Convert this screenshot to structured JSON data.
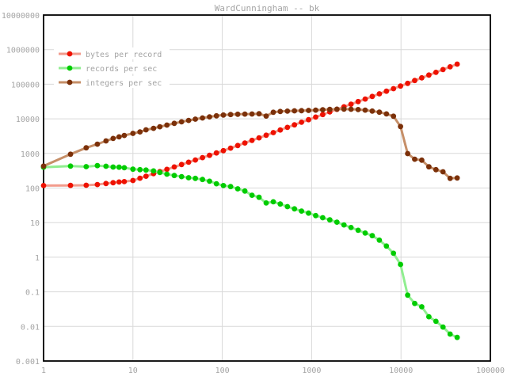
{
  "title": "WardCunningham -- bk",
  "colors": {
    "background": "#ffffff",
    "grid": "#d9d9d9",
    "border": "#000000",
    "label_text": "#a4a4a4"
  },
  "chart_data": {
    "type": "line",
    "title": "WardCunningham -- bk",
    "x_scale": "log",
    "y_scale": "log",
    "grid": true,
    "legend_position": "top-left",
    "x_range": [
      1,
      100000
    ],
    "y_range": [
      0.001,
      10000000
    ],
    "x_tick_labels": [
      "1",
      "10",
      "100",
      "1000",
      "10000",
      "100000"
    ],
    "y_tick_labels": [
      "10000000",
      "1000000",
      "100000",
      "10000",
      "1000",
      "100",
      "10",
      "1",
      "0.1",
      "0.01",
      "0.001"
    ],
    "x": [
      1,
      2,
      3,
      4,
      5,
      6,
      7,
      8,
      10,
      12,
      14,
      17,
      20,
      24,
      29,
      35,
      42,
      50,
      60,
      72,
      86,
      103,
      124,
      149,
      179,
      215,
      258,
      310,
      372,
      446,
      535,
      642,
      770,
      924,
      1109,
      1331,
      1597,
      1916,
      2299,
      2759,
      3311,
      3973,
      4768,
      5722,
      6866,
      8239,
      9887,
      11864,
      14237,
      17084,
      20501,
      24601,
      29521,
      35425,
      42510
    ],
    "series": [
      {
        "name": "bytes per record",
        "point_color": "#ee1100",
        "line_color": "#f29b8c",
        "values": [
          118,
          119,
          120,
          126,
          135,
          142,
          149,
          153,
          165,
          192,
          219,
          259,
          297,
          347,
          407,
          478,
          558,
          647,
          755,
          881,
          1030,
          1200,
          1420,
          1690,
          2010,
          2380,
          2830,
          3360,
          4000,
          4750,
          5650,
          6700,
          7960,
          9460,
          11200,
          13300,
          15800,
          18800,
          22300,
          26500,
          31500,
          37400,
          44500,
          52800,
          62800,
          74600,
          88600,
          106000,
          128000,
          153000,
          184000,
          221000,
          265000,
          318000,
          381000
        ]
      },
      {
        "name": "records per sec",
        "point_color": "#00cc00",
        "line_color": "#90ee90",
        "values": [
          400,
          430,
          415,
          445,
          425,
          405,
          400,
          385,
          350,
          340,
          330,
          312,
          282,
          252,
          230,
          213,
          198,
          190,
          177,
          157,
          133,
          118,
          110,
          95,
          82,
          62,
          54,
          37,
          40,
          34.5,
          29,
          25,
          21.6,
          18.8,
          16,
          13.9,
          12,
          10.3,
          8.6,
          7.2,
          6.0,
          5.0,
          4.2,
          3.1,
          2.1,
          1.3,
          0.62,
          0.08,
          0.046,
          0.037,
          0.019,
          0.014,
          0.0096,
          0.006,
          0.0048
        ]
      },
      {
        "name": "integers per sec",
        "point_color": "#7b3009",
        "line_color": "#c68f68",
        "values": [
          430,
          950,
          1450,
          1850,
          2300,
          2700,
          3000,
          3300,
          3800,
          4200,
          4800,
          5300,
          5900,
          6600,
          7400,
          8200,
          9000,
          9800,
          10600,
          11400,
          12200,
          12900,
          13300,
          13600,
          13700,
          13800,
          14000,
          12000,
          15500,
          16300,
          16700,
          17000,
          17200,
          17500,
          17900,
          18300,
          18700,
          19000,
          19000,
          18900,
          18500,
          17900,
          16800,
          15600,
          13900,
          11900,
          6000,
          990,
          680,
          640,
          410,
          340,
          295,
          190,
          195
        ]
      }
    ]
  }
}
